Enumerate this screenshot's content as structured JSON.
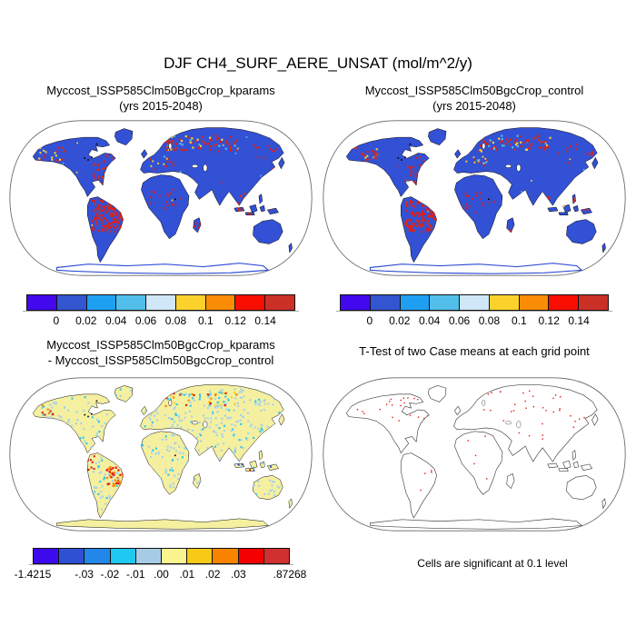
{
  "main_title": "DJF CH4_SURF_AERE_UNSAT (mol/m^2/y)",
  "panels": {
    "kparams": {
      "title_line1": "Myccost_ISSP585Clm50BgcCrop_kparams",
      "title_line2": "(yrs 2015-2048)"
    },
    "control": {
      "title_line1": "Myccost_ISSP585Clm50BgcCrop_control",
      "title_line2": "(yrs 2015-2048)"
    },
    "diff": {
      "title_line1": "Myccost_ISSP585Clm50BgcCrop_kparams",
      "title_line2": "- Myccost_ISSP585Clm50BgcCrop_control"
    },
    "ttest": {
      "title": "T-Test of two Case means at each grid point",
      "caption": "Cells are significant at 0.1 level"
    }
  },
  "colorbar_top": {
    "colors": [
      "#4209EE",
      "#3355D0",
      "#1E9FF2",
      "#52BEEA",
      "#CFE7F6",
      "#FBD22C",
      "#FB8C06",
      "#F80E00",
      "#CB3027"
    ],
    "labels": [
      "0",
      "0.02",
      "0.04",
      "0.06",
      "0.08",
      "0.1",
      "0.12",
      "0.14"
    ]
  },
  "colorbar_diff": {
    "colors": [
      "#3D0AEE",
      "#2F50D2",
      "#2287E8",
      "#1FC8F0",
      "#A6CBE4",
      "#FAF48F",
      "#F9C918",
      "#F88400",
      "#F40000",
      "#D03030"
    ],
    "labels": [
      "-1.4215",
      "-.03",
      "-.02",
      "-.01",
      ".00",
      ".01",
      ".02",
      ".03",
      ".87268"
    ]
  },
  "map_colors": {
    "land_blue": "#3351D4",
    "land_yellow": "#F5F0A0",
    "land_white": "#FFFFFF",
    "coast_black": "#000000",
    "coast_gray": "#444444",
    "map_border": "#666666",
    "red": "#E21D14",
    "brick": "#CB3027",
    "gold": "#FBD22C",
    "sky": "#52BEEA",
    "orange": "#F88400",
    "cyan": "#2FC8F0",
    "lblue": "#A9D2E9",
    "dblue": "#2F50D2"
  },
  "chart_data": [
    {
      "type": "heatmap",
      "subtype": "global-map-robinson",
      "title": "Myccost_ISSP585Clm50BgcCrop_kparams (yrs 2015-2048)",
      "variable": "DJF CH4_SURF_AERE_UNSAT",
      "units": "mol/m^2/y",
      "colorbar_ticks": [
        0,
        0.02,
        0.04,
        0.06,
        0.08,
        0.1,
        0.12,
        0.14
      ],
      "n_color_bins": 9,
      "description": "Land values mostly in lowest bin (blue); high values (red) over Amazon, SE United States, NW North America, northern Europe/Russia, central Africa, Madagascar, Southeast Asia/Indonesia"
    },
    {
      "type": "heatmap",
      "subtype": "global-map-robinson",
      "title": "Myccost_ISSP585Clm50BgcCrop_control (yrs 2015-2048)",
      "variable": "DJF CH4_SURF_AERE_UNSAT",
      "units": "mol/m^2/y",
      "colorbar_ticks": [
        0,
        0.02,
        0.04,
        0.06,
        0.08,
        0.1,
        0.12,
        0.14
      ],
      "n_color_bins": 9,
      "description": "Nearly identical spatial pattern to kparams case"
    },
    {
      "type": "heatmap",
      "subtype": "global-map-robinson",
      "title": "Myccost_ISSP585Clm50BgcCrop_kparams - Myccost_ISSP585Clm50BgcCrop_control",
      "variable": "difference",
      "units": "mol/m^2/y",
      "colorbar_ticks": [
        -1.4215,
        -0.03,
        -0.02,
        -0.01,
        0.0,
        0.01,
        0.02,
        0.03,
        0.87268
      ],
      "n_color_bins": 10,
      "description": "Mostly near-zero (pale yellow) land with light-blue speckle; strong negative/positive patch in eastern Brazil; orange/red band across northern Eurasia; dark blue specks over Indonesia"
    },
    {
      "type": "scatter",
      "subtype": "global-map-robinson",
      "title": "T-Test of two Case means at each grid point",
      "note": "Cells are significant at 0.1 level",
      "description": "Coastline-only map with sparse small red cells, mostly at high northern latitudes"
    }
  ]
}
